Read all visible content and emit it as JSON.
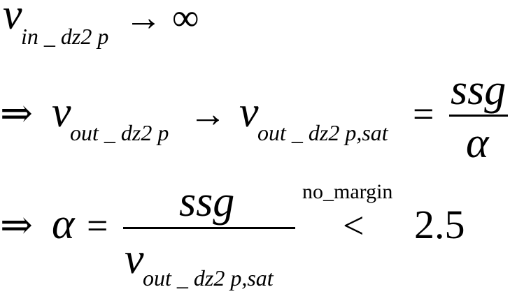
{
  "equation": {
    "line1": {
      "v": "v",
      "subscript": "in _ dz2 p",
      "arrow": "→",
      "infinity": "∞"
    },
    "line2": {
      "implies": "⇒",
      "v_left": "v",
      "subscript_left": "out _ dz2 p",
      "arrow": "→",
      "v_right": "v",
      "subscript_right": "out _ dz2 p,sat",
      "equals": "=",
      "numerator": "ssg",
      "denominator": "α"
    },
    "line3": {
      "implies": "⇒",
      "alpha": "α",
      "equals": "=",
      "numerator": "ssg",
      "denominator_v": "v",
      "denominator_subscript": "out _ dz2 p,sat",
      "annotation": "no_margin",
      "less_than": "<",
      "value": "2.5"
    }
  }
}
